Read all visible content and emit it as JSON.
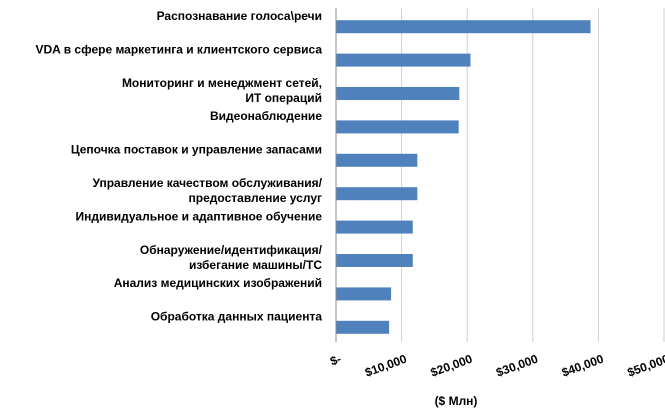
{
  "chart_data": {
    "type": "bar",
    "orientation": "horizontal",
    "categories": [
      [
        "Распознавание голоса\\речи"
      ],
      [
        "VDA в сфере маркетинга и клиентского сервиса"
      ],
      [
        "Мониторинг и менеджмент сетей,",
        "ИТ операций"
      ],
      [
        "Видеонаблюдение"
      ],
      [
        "Цепочка поставок и управление запасами"
      ],
      [
        "Управление качеством обслуживания/",
        "предоставление услуг"
      ],
      [
        "Индивидуальное и адаптивное обучение"
      ],
      [
        "Обнаружение/идентификация/",
        "избегание машины/ТС"
      ],
      [
        "Анализ медицинских изображений"
      ],
      [
        "Обработка данных пациента"
      ]
    ],
    "values": [
      38800,
      20500,
      18800,
      18700,
      12400,
      12400,
      11700,
      11700,
      8400,
      8100
    ],
    "xlim": [
      0,
      50000
    ],
    "xticks": [
      0,
      10000,
      20000,
      30000,
      40000,
      50000
    ],
    "xtick_labels": [
      "$-",
      "$10,000",
      "$20,000",
      "$30,000",
      "$40,000",
      "$50,000"
    ],
    "xlabel": "($ Млн)",
    "ylabel": "",
    "title": "",
    "bar_color": "#4f81bd",
    "grid": "vertical",
    "legend": "none"
  }
}
